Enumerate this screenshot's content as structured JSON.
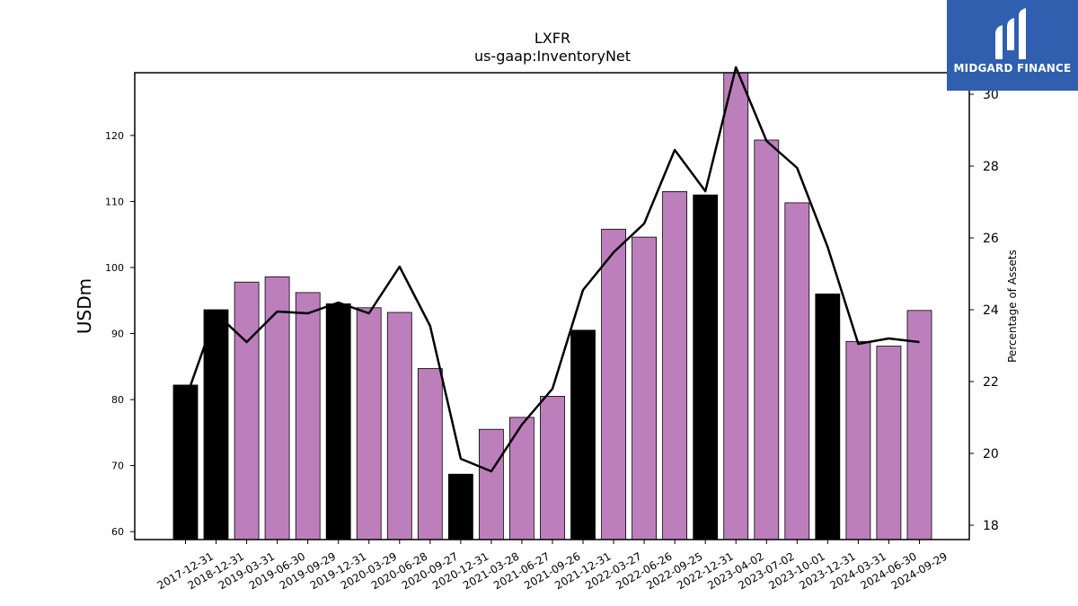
{
  "brand": {
    "name": "MIDGARD FINANCE",
    "bg_color": "#2f5fae"
  },
  "colors": {
    "annual_bar": "#000000",
    "quarterly_bar": "#bc7fbc",
    "line": "#000000"
  },
  "chart_data": {
    "type": "bar",
    "title": "LXFR",
    "subtitle": "us-gaap:InventoryNet",
    "ylabel": "USDm",
    "y2label": "Percentage of Assets",
    "ylim": [
      58.8,
      129.5
    ],
    "y2lim": [
      17.6,
      30.6
    ],
    "yticks": [
      60,
      70,
      80,
      90,
      100,
      110,
      120
    ],
    "y2ticks": [
      18,
      20,
      22,
      24,
      26,
      28,
      30
    ],
    "categories": [
      "2017-12-31",
      "2018-12-31",
      "2019-03-31",
      "2019-06-30",
      "2019-09-29",
      "2019-12-31",
      "2020-03-29",
      "2020-06-28",
      "2020-09-27",
      "2020-12-31",
      "2021-03-28",
      "2021-06-27",
      "2021-09-26",
      "2021-12-31",
      "2022-03-27",
      "2022-06-26",
      "2022-09-25",
      "2022-12-31",
      "2023-04-02",
      "2023-07-02",
      "2023-10-01",
      "2023-12-31",
      "2024-03-31",
      "2024-06-30",
      "2024-09-29"
    ],
    "series": [
      {
        "values": [
          82.2,
          93.6,
          97.8,
          98.6,
          96.2,
          94.5,
          93.9,
          93.2,
          84.7,
          68.7,
          75.5,
          77.3,
          80.5,
          90.5,
          105.8,
          104.6,
          111.5,
          111.0,
          129.5,
          119.3,
          109.8,
          96.0,
          88.8,
          88.1,
          93.5
        ],
        "is_annual": [
          true,
          true,
          false,
          false,
          false,
          true,
          false,
          false,
          false,
          true,
          false,
          false,
          false,
          true,
          false,
          false,
          false,
          true,
          false,
          false,
          false,
          true,
          false,
          false,
          false
        ]
      },
      {
        "axis": "right",
        "values": [
          21.5,
          23.9,
          23.1,
          23.95,
          23.9,
          24.2,
          23.9,
          25.2,
          23.55,
          19.85,
          19.5,
          20.8,
          21.8,
          24.55,
          25.6,
          26.4,
          28.45,
          27.3,
          30.75,
          28.7,
          27.95,
          25.75,
          23.05,
          23.2,
          23.1
        ]
      }
    ]
  }
}
